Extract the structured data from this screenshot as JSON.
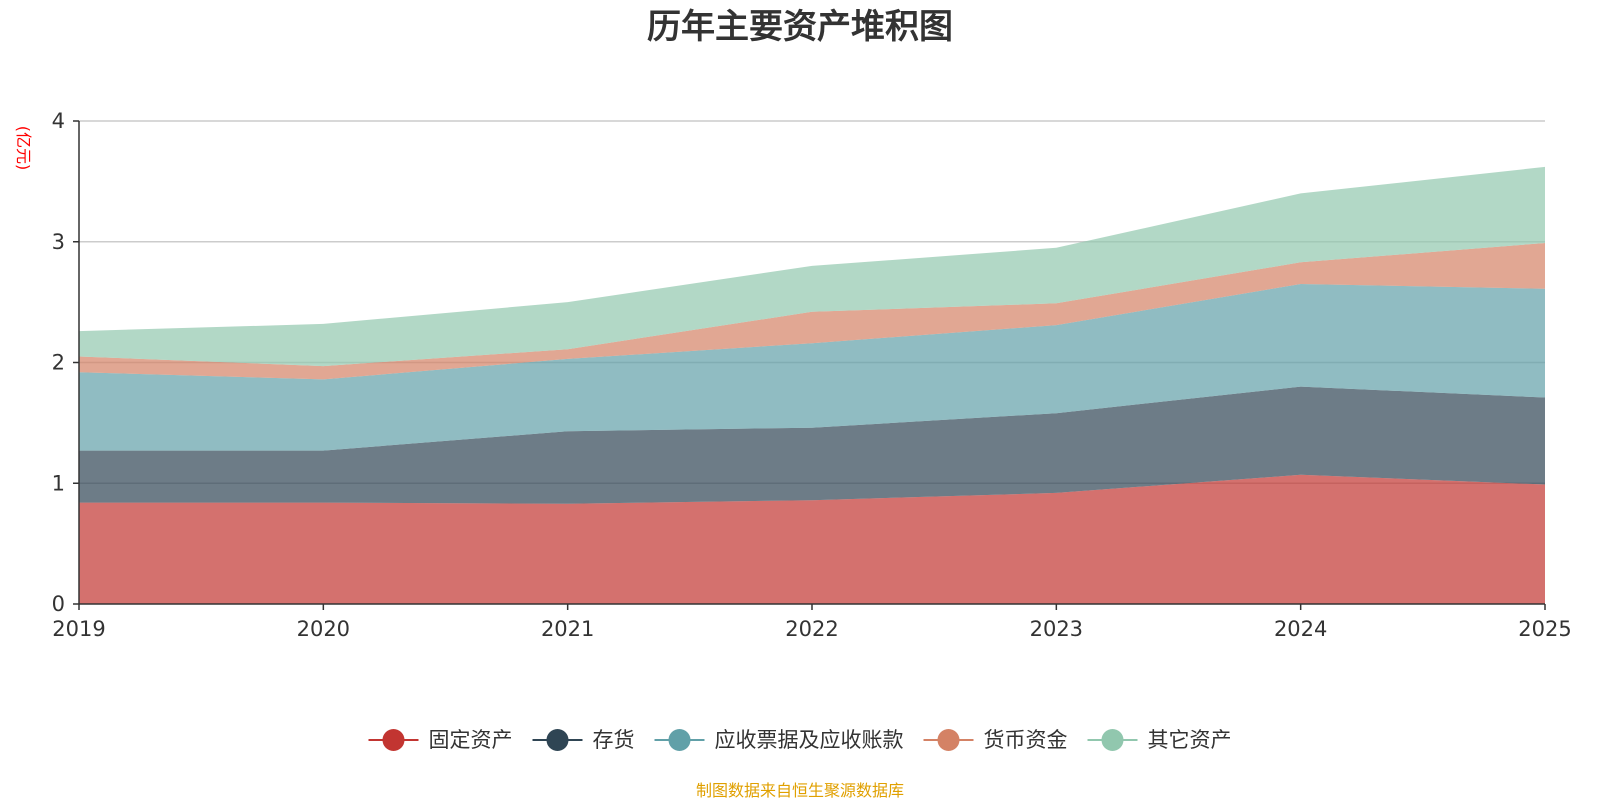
{
  "chart_data": {
    "type": "area",
    "stacked": true,
    "title": "历年主要资产堆积图",
    "ylabel": "(亿元)",
    "xlabel": "",
    "x": [
      "2019",
      "2020",
      "2021",
      "2022",
      "2023",
      "2024",
      "2025"
    ],
    "ylim": [
      0,
      4
    ],
    "yticks": [
      0,
      1,
      2,
      3,
      4
    ],
    "grid": true,
    "legend_position": "bottom",
    "series": [
      {
        "name": "固定资产",
        "color": "#c23531",
        "values": [
          0.84,
          0.84,
          0.83,
          0.86,
          0.92,
          1.07,
          0.99
        ]
      },
      {
        "name": "存货",
        "color": "#2f4554",
        "values": [
          0.43,
          0.43,
          0.6,
          0.6,
          0.66,
          0.73,
          0.72
        ]
      },
      {
        "name": "应收票据及应收账款",
        "color": "#61a0a8",
        "values": [
          0.65,
          0.59,
          0.6,
          0.7,
          0.73,
          0.85,
          0.9
        ]
      },
      {
        "name": "货币资金",
        "color": "#d48265",
        "values": [
          0.13,
          0.11,
          0.08,
          0.26,
          0.18,
          0.18,
          0.38
        ]
      },
      {
        "name": "其它资产",
        "color": "#91c7ae",
        "values": [
          0.21,
          0.35,
          0.39,
          0.38,
          0.46,
          0.57,
          0.63
        ]
      }
    ],
    "source": "制图数据来自恒生聚源数据库",
    "source_color": "#e0a000",
    "unit_color": "#ff0000"
  }
}
